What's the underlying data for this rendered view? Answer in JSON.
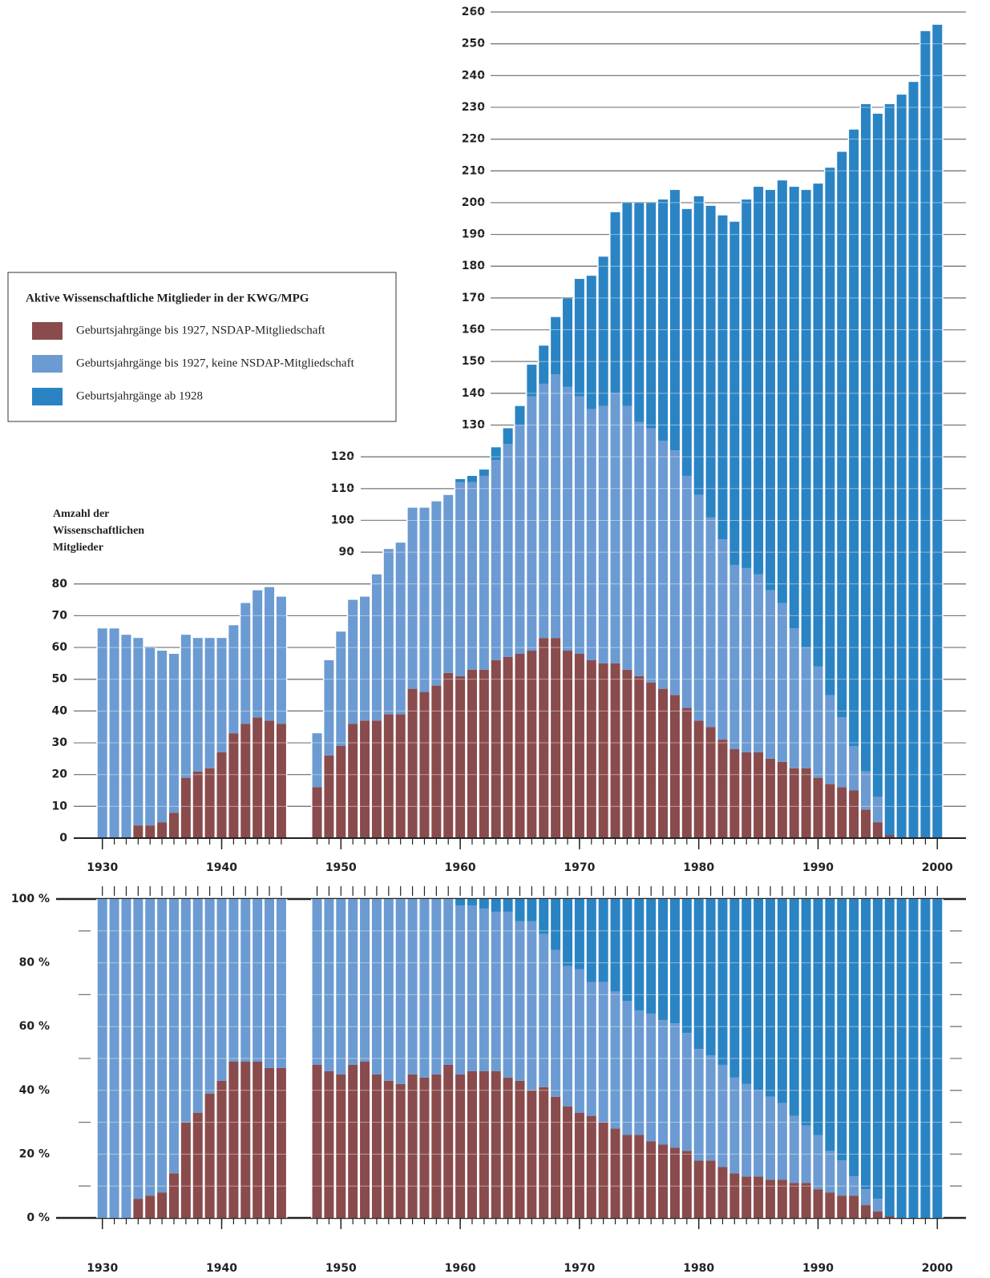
{
  "chart_data": [
    {
      "type": "bar",
      "stacked": true,
      "legend_title": "Aktive Wissenschaftliche Mitglieder in der KWG/MPG",
      "y_label": "Amzahl der Wissenschaftlichen Mitglieder",
      "x": [
        1930,
        1931,
        1932,
        1933,
        1934,
        1935,
        1936,
        1937,
        1938,
        1939,
        1940,
        1941,
        1942,
        1943,
        1944,
        1945,
        1948,
        1949,
        1950,
        1951,
        1952,
        1953,
        1954,
        1955,
        1956,
        1957,
        1958,
        1959,
        1960,
        1961,
        1962,
        1963,
        1964,
        1965,
        1966,
        1967,
        1968,
        1969,
        1970,
        1971,
        1972,
        1973,
        1974,
        1975,
        1976,
        1977,
        1978,
        1979,
        1980,
        1981,
        1982,
        1983,
        1984,
        1985,
        1986,
        1987,
        1988,
        1989,
        1990,
        1991,
        1992,
        1993,
        1994,
        1995,
        1996,
        1997,
        1998,
        1999,
        2000
      ],
      "series": [
        {
          "name": "Geburtsjahrgänge bis 1927, NSDAP-Mitgliedschaft",
          "color": "#8a4b4d",
          "values": [
            0,
            0,
            0,
            4,
            4,
            5,
            8,
            19,
            21,
            22,
            27,
            33,
            36,
            38,
            37,
            36,
            16,
            26,
            29,
            36,
            37,
            37,
            39,
            39,
            47,
            46,
            48,
            52,
            51,
            53,
            53,
            56,
            57,
            58,
            59,
            63,
            63,
            59,
            58,
            56,
            55,
            55,
            53,
            51,
            49,
            47,
            45,
            41,
            37,
            35,
            31,
            28,
            27,
            27,
            25,
            24,
            22,
            22,
            19,
            17,
            16,
            15,
            9,
            5,
            1,
            0,
            0,
            0,
            0
          ]
        },
        {
          "name": "Geburtsjahrgänge bis 1927, keine NSDAP-Mitgliedschaft",
          "color": "#6b9bd2",
          "values": [
            66,
            66,
            64,
            59,
            56,
            54,
            50,
            45,
            42,
            41,
            36,
            34,
            38,
            40,
            42,
            40,
            17,
            30,
            36,
            39,
            39,
            46,
            52,
            54,
            57,
            58,
            58,
            56,
            61,
            59,
            61,
            63,
            67,
            72,
            80,
            80,
            83,
            83,
            81,
            79,
            81,
            85,
            83,
            80,
            80,
            78,
            77,
            73,
            71,
            66,
            63,
            58,
            58,
            56,
            53,
            50,
            44,
            38,
            35,
            28,
            22,
            14,
            12,
            8,
            0,
            0,
            0,
            0,
            0
          ]
        },
        {
          "name": "Geburtsjahrgänge ab 1928",
          "color": "#2a84c3",
          "values": [
            0,
            0,
            0,
            0,
            0,
            0,
            0,
            0,
            0,
            0,
            0,
            0,
            0,
            0,
            0,
            0,
            0,
            0,
            0,
            0,
            0,
            0,
            0,
            0,
            0,
            0,
            0,
            0,
            1,
            2,
            2,
            4,
            5,
            6,
            10,
            12,
            18,
            28,
            37,
            42,
            47,
            57,
            64,
            69,
            71,
            76,
            82,
            84,
            94,
            98,
            102,
            108,
            116,
            122,
            126,
            133,
            139,
            144,
            152,
            166,
            178,
            194,
            210,
            215,
            230,
            234,
            238,
            254,
            256
          ]
        }
      ],
      "xlim": [
        1927.6,
        2002.4
      ],
      "xticks": [
        1930,
        1940,
        1950,
        1960,
        1970,
        1980,
        1990,
        2000
      ],
      "ylim": [
        0,
        260
      ],
      "yticks": [
        0,
        10,
        20,
        30,
        40,
        50,
        60,
        70,
        80,
        90,
        100,
        110,
        120,
        130,
        140,
        150,
        160,
        170,
        180,
        190,
        200,
        210,
        220,
        230,
        240,
        250,
        260
      ]
    },
    {
      "type": "bar",
      "stacked": true,
      "x": [
        1930,
        1931,
        1932,
        1933,
        1934,
        1935,
        1936,
        1937,
        1938,
        1939,
        1940,
        1941,
        1942,
        1943,
        1944,
        1945,
        1948,
        1949,
        1950,
        1951,
        1952,
        1953,
        1954,
        1955,
        1956,
        1957,
        1958,
        1959,
        1960,
        1961,
        1962,
        1963,
        1964,
        1965,
        1966,
        1967,
        1968,
        1969,
        1970,
        1971,
        1972,
        1973,
        1974,
        1975,
        1976,
        1977,
        1978,
        1979,
        1980,
        1981,
        1982,
        1983,
        1984,
        1985,
        1986,
        1987,
        1988,
        1989,
        1990,
        1991,
        1992,
        1993,
        1994,
        1995,
        1996,
        1997,
        1998,
        1999,
        2000
      ],
      "series": [
        {
          "color": "#8a4b4d",
          "values": [
            0,
            0,
            0,
            6,
            7,
            8,
            14,
            30,
            33,
            39,
            43,
            49,
            49,
            49,
            47,
            47,
            48,
            46,
            45,
            48,
            49,
            45,
            43,
            42,
            45,
            44,
            45,
            48,
            45,
            46,
            46,
            46,
            44,
            43,
            40,
            41,
            38,
            35,
            33,
            32,
            30,
            28,
            26,
            26,
            24,
            23,
            22,
            21,
            18,
            18,
            16,
            14,
            13,
            13,
            12,
            12,
            11,
            11,
            9,
            8,
            7,
            7,
            4,
            2,
            0.5,
            0,
            0,
            0,
            0
          ]
        },
        {
          "color": "#6b9bd2",
          "values": [
            100,
            100,
            100,
            94,
            93,
            92,
            86,
            70,
            67,
            61,
            57,
            51,
            51,
            51,
            53,
            53,
            52,
            54,
            55,
            52,
            51,
            55,
            57,
            58,
            55,
            56,
            55,
            52,
            53,
            52,
            51,
            50,
            52,
            50,
            53,
            48,
            46,
            44,
            45,
            42,
            44,
            43,
            42,
            39,
            40,
            39,
            39,
            37,
            35,
            33,
            32,
            30,
            29,
            27,
            26,
            24,
            21,
            18,
            17,
            13,
            11,
            6,
            5,
            4,
            0,
            0,
            0,
            0,
            0
          ]
        },
        {
          "color": "#2a84c3",
          "values": [
            0,
            0,
            0,
            0,
            0,
            0,
            0,
            0,
            0,
            0,
            0,
            0,
            0,
            0,
            0,
            0,
            0,
            0,
            0,
            0,
            0,
            0,
            0,
            0,
            0,
            0,
            0,
            0,
            2,
            2,
            3,
            4,
            4,
            7,
            7,
            11,
            16,
            21,
            22,
            26,
            26,
            29,
            32,
            35,
            36,
            38,
            39,
            42,
            47,
            49,
            52,
            56,
            58,
            60,
            62,
            64,
            68,
            71,
            74,
            79,
            82,
            87,
            91,
            94,
            99.5,
            100,
            100,
            100,
            100
          ]
        }
      ],
      "xlim": [
        1927.6,
        2002.4
      ],
      "xticks": [
        1930,
        1940,
        1950,
        1960,
        1970,
        1980,
        1990,
        2000
      ],
      "ylim": [
        0,
        100
      ],
      "yticks": [
        {
          "value": 0,
          "label": "0 %"
        },
        {
          "value": 20,
          "label": "20 %"
        },
        {
          "value": 40,
          "label": "40 %"
        },
        {
          "value": 60,
          "label": "60 %"
        },
        {
          "value": 80,
          "label": "80 %"
        },
        {
          "value": 100,
          "label": "100 %"
        }
      ],
      "yminor_ticks": [
        10,
        30,
        50,
        70,
        90
      ]
    }
  ]
}
